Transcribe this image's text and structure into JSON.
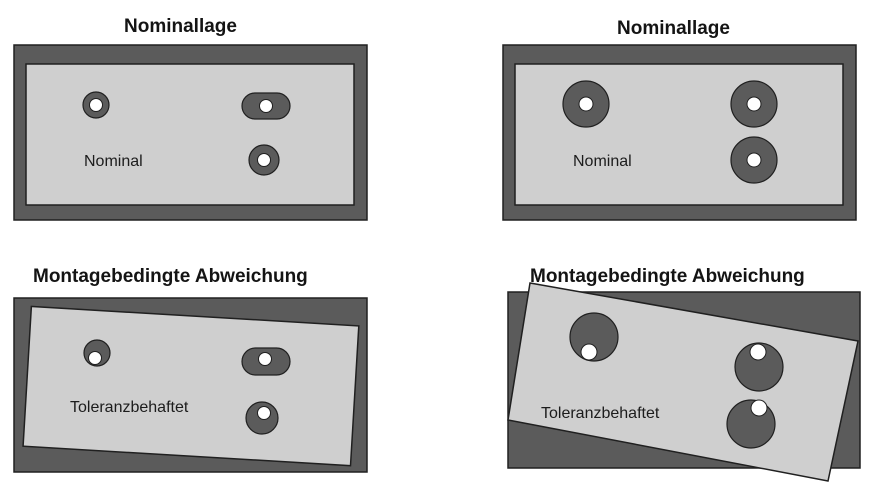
{
  "panels": [
    {
      "title": "Nominallage",
      "label": "Nominal"
    },
    {
      "title": "Nominallage",
      "label": "Nominal"
    },
    {
      "title": "Montagebedingte Abweichung",
      "label": "Toleranzbehaftet"
    },
    {
      "title": "Montagebedingte Abweichung",
      "label": "Toleranzbehaftet"
    }
  ],
  "colors": {
    "base_plate": "#5b5b5b",
    "top_plate": "#cfcfcf",
    "hole": "#ffffff",
    "outline": "#202020"
  }
}
